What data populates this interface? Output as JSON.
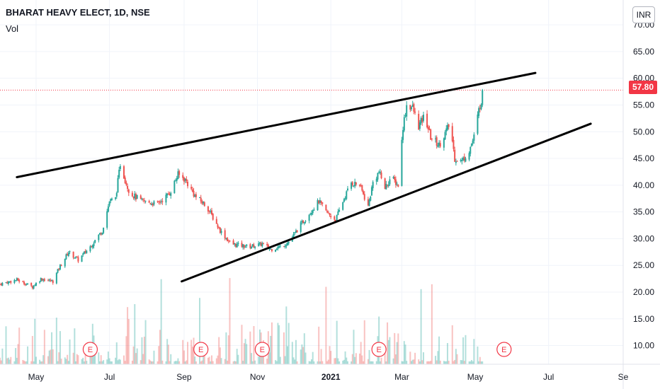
{
  "header": {
    "title": "BHARAT HEAVY ELECT, 1D, NSE",
    "volume_label": "Vol",
    "currency_button": "INR",
    "last_price": "57.80"
  },
  "colors": {
    "up": "#26a69a",
    "down": "#ef5350",
    "trendline": "#000000",
    "price_line": "#f23645",
    "earnings": "#f23645",
    "axis_text": "#131722",
    "grid": "#f0f3fa"
  },
  "chart_data": {
    "type": "candlestick",
    "title": "BHARAT HEAVY ELECT, 1D, NSE",
    "y_axis": {
      "ticks": [
        "10.00",
        "15.00",
        "20.00",
        "25.00",
        "30.00",
        "35.00",
        "40.00",
        "45.00",
        "50.00",
        "55.00",
        "60.00",
        "65.00",
        "70.00"
      ],
      "range": [
        6.5,
        72
      ]
    },
    "x_axis": {
      "ticks": [
        "May",
        "Jul",
        "Sep",
        "Nov",
        "2021",
        "Mar",
        "May",
        "Jul",
        "Se"
      ],
      "range": [
        "2020-04-01",
        "2021-09-01"
      ]
    },
    "last_price": 57.8,
    "price_path": [
      [
        "2020-04-01",
        21.5
      ],
      [
        "2020-04-15",
        22.3
      ],
      [
        "2020-04-28",
        21.0
      ],
      [
        "2020-05-05",
        22.5
      ],
      [
        "2020-05-15",
        22.0
      ],
      [
        "2020-05-20",
        24.5
      ],
      [
        "2020-05-28",
        27.5
      ],
      [
        "2020-06-05",
        26.0
      ],
      [
        "2020-06-15",
        28.5
      ],
      [
        "2020-06-25",
        31.5
      ],
      [
        "2020-07-01",
        37.0
      ],
      [
        "2020-07-06",
        37.5
      ],
      [
        "2020-07-10",
        44.0
      ],
      [
        "2020-07-14",
        41.0
      ],
      [
        "2020-07-18",
        38.5
      ],
      [
        "2020-07-28",
        37.0
      ],
      [
        "2020-08-10",
        36.5
      ],
      [
        "2020-08-20",
        38.5
      ],
      [
        "2020-08-27",
        42.0
      ],
      [
        "2020-09-02",
        41.0
      ],
      [
        "2020-09-10",
        38.0
      ],
      [
        "2020-09-20",
        36.0
      ],
      [
        "2020-10-01",
        31.5
      ],
      [
        "2020-10-10",
        29.0
      ],
      [
        "2020-10-25",
        28.5
      ],
      [
        "2020-11-05",
        29.0
      ],
      [
        "2020-11-12",
        28.0
      ],
      [
        "2020-11-20",
        28.5
      ],
      [
        "2020-11-28",
        29.5
      ],
      [
        "2020-12-05",
        32.0
      ],
      [
        "2020-12-15",
        35.0
      ],
      [
        "2020-12-22",
        37.0
      ],
      [
        "2020-12-28",
        35.0
      ],
      [
        "2021-01-05",
        33.5
      ],
      [
        "2021-01-12",
        37.5
      ],
      [
        "2021-01-18",
        40.5
      ],
      [
        "2021-01-25",
        40.0
      ],
      [
        "2021-02-01",
        36.0
      ],
      [
        "2021-02-05",
        40.5
      ],
      [
        "2021-02-10",
        42.5
      ],
      [
        "2021-02-15",
        39.5
      ],
      [
        "2021-02-20",
        41.5
      ],
      [
        "2021-02-26",
        40.0
      ],
      [
        "2021-03-02",
        51.0
      ],
      [
        "2021-03-05",
        55.0
      ],
      [
        "2021-03-10",
        54.5
      ],
      [
        "2021-03-15",
        51.0
      ],
      [
        "2021-03-20",
        53.0
      ],
      [
        "2021-03-25",
        49.0
      ],
      [
        "2021-04-01",
        47.5
      ],
      [
        "2021-04-10",
        51.5
      ],
      [
        "2021-04-14",
        45.0
      ],
      [
        "2021-04-20",
        44.5
      ],
      [
        "2021-04-26",
        46.5
      ],
      [
        "2021-04-30",
        49.0
      ],
      [
        "2021-05-04",
        54.0
      ],
      [
        "2021-05-08",
        57.8
      ]
    ],
    "trendlines": [
      {
        "name": "upper",
        "from": [
          "2020-04-15",
          41.5
        ],
        "to": [
          "2021-06-20",
          61.0
        ]
      },
      {
        "name": "lower",
        "from": [
          "2020-08-30",
          22.0
        ],
        "to": [
          "2021-08-05",
          51.5
        ]
      }
    ],
    "earnings_markers": {
      "label": "E",
      "dates": [
        "2020-06-15",
        "2020-09-15",
        "2020-11-05",
        "2021-02-10",
        "2021-05-25"
      ]
    }
  }
}
